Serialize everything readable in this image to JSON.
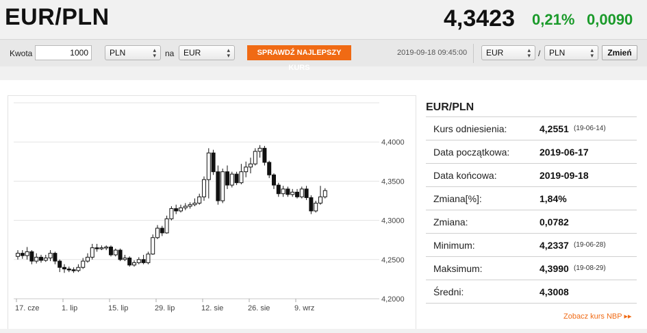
{
  "header": {
    "title": "EUR/PLN",
    "rate": "4,3423",
    "change_pct": "0,21%",
    "change_abs": "0,0090"
  },
  "toolbar": {
    "amount_label": "Kwota",
    "amount_value": "1000",
    "from_currency": "PLN",
    "on_label": "na",
    "to_currency": "EUR",
    "best_rate_button": "SPRAWDŹ NAJLEPSZY KURS",
    "timestamp": "2019-09-18 09:45:00",
    "pair_base": "EUR",
    "pair_sep": "/",
    "pair_quote": "PLN",
    "swap_button": "Zmień"
  },
  "stats": {
    "title": "EUR/PLN",
    "rows": [
      {
        "label": "Kurs odniesienia:",
        "value": "4,2551",
        "date": "(19-06-14)"
      },
      {
        "label": "Data początkowa:",
        "value": "2019-06-17",
        "date": ""
      },
      {
        "label": "Data końcowa:",
        "value": "2019-09-18",
        "date": ""
      },
      {
        "label": "Zmiana[%]:",
        "value": "1,84%",
        "date": ""
      },
      {
        "label": "Zmiana:",
        "value": "0,0782",
        "date": ""
      },
      {
        "label": "Minimum:",
        "value": "4,2337",
        "date": "(19-06-28)"
      },
      {
        "label": "Maksimum:",
        "value": "4,3990",
        "date": "(19-08-29)"
      },
      {
        "label": "Średni:",
        "value": "4,3008",
        "date": ""
      }
    ],
    "nbp_link": "Zobacz kurs NBP ▸▸"
  },
  "colors": {
    "accent": "#f06a14",
    "positive": "#1a9a2a"
  },
  "chart_data": {
    "type": "candlestick",
    "y_ticks": [
      "4,2000",
      "4,2500",
      "4,3000",
      "4,3500",
      "4,4000"
    ],
    "y_tick_values": [
      4.2,
      4.25,
      4.3,
      4.35,
      4.4
    ],
    "ylim": [
      4.2,
      4.45
    ],
    "x_ticks": [
      "17. cze",
      "1. lip",
      "15. lip",
      "29. lip",
      "12. sie",
      "26. sie",
      "9. wrz"
    ],
    "x_tick_index": [
      0,
      10,
      20,
      30,
      40,
      50,
      60
    ],
    "grid": true,
    "candles": [
      {
        "o": 4.254,
        "c": 4.258,
        "h": 4.262,
        "l": 4.25
      },
      {
        "o": 4.258,
        "c": 4.255,
        "h": 4.262,
        "l": 4.251
      },
      {
        "o": 4.255,
        "c": 4.26,
        "h": 4.266,
        "l": 4.25
      },
      {
        "o": 4.26,
        "c": 4.248,
        "h": 4.262,
        "l": 4.244
      },
      {
        "o": 4.248,
        "c": 4.253,
        "h": 4.258,
        "l": 4.245
      },
      {
        "o": 4.253,
        "c": 4.249,
        "h": 4.256,
        "l": 4.246
      },
      {
        "o": 4.249,
        "c": 4.252,
        "h": 4.256,
        "l": 4.247
      },
      {
        "o": 4.252,
        "c": 4.258,
        "h": 4.262,
        "l": 4.248
      },
      {
        "o": 4.258,
        "c": 4.248,
        "h": 4.26,
        "l": 4.244
      },
      {
        "o": 4.248,
        "c": 4.24,
        "h": 4.25,
        "l": 4.234
      },
      {
        "o": 4.24,
        "c": 4.238,
        "h": 4.244,
        "l": 4.233
      },
      {
        "o": 4.238,
        "c": 4.237,
        "h": 4.241,
        "l": 4.234
      },
      {
        "o": 4.237,
        "c": 4.236,
        "h": 4.24,
        "l": 4.233
      },
      {
        "o": 4.236,
        "c": 4.24,
        "h": 4.244,
        "l": 4.234
      },
      {
        "o": 4.24,
        "c": 4.248,
        "h": 4.252,
        "l": 4.238
      },
      {
        "o": 4.248,
        "c": 4.253,
        "h": 4.258,
        "l": 4.246
      },
      {
        "o": 4.253,
        "c": 4.265,
        "h": 4.27,
        "l": 4.25
      },
      {
        "o": 4.265,
        "c": 4.264,
        "h": 4.27,
        "l": 4.26
      },
      {
        "o": 4.264,
        "c": 4.265,
        "h": 4.268,
        "l": 4.262
      },
      {
        "o": 4.265,
        "c": 4.266,
        "h": 4.268,
        "l": 4.262
      },
      {
        "o": 4.266,
        "c": 4.256,
        "h": 4.268,
        "l": 4.254
      },
      {
        "o": 4.256,
        "c": 4.262,
        "h": 4.264,
        "l": 4.254
      },
      {
        "o": 4.262,
        "c": 4.25,
        "h": 4.264,
        "l": 4.248
      },
      {
        "o": 4.25,
        "c": 4.252,
        "h": 4.256,
        "l": 4.248
      },
      {
        "o": 4.252,
        "c": 4.243,
        "h": 4.254,
        "l": 4.241
      },
      {
        "o": 4.243,
        "c": 4.246,
        "h": 4.249,
        "l": 4.241
      },
      {
        "o": 4.246,
        "c": 4.25,
        "h": 4.253,
        "l": 4.244
      },
      {
        "o": 4.25,
        "c": 4.246,
        "h": 4.256,
        "l": 4.244
      },
      {
        "o": 4.246,
        "c": 4.257,
        "h": 4.26,
        "l": 4.244
      },
      {
        "o": 4.257,
        "c": 4.278,
        "h": 4.282,
        "l": 4.256
      },
      {
        "o": 4.278,
        "c": 4.29,
        "h": 4.294,
        "l": 4.276
      },
      {
        "o": 4.29,
        "c": 4.284,
        "h": 4.293,
        "l": 4.28
      },
      {
        "o": 4.284,
        "c": 4.302,
        "h": 4.306,
        "l": 4.283
      },
      {
        "o": 4.302,
        "c": 4.315,
        "h": 4.318,
        "l": 4.3
      },
      {
        "o": 4.315,
        "c": 4.312,
        "h": 4.32,
        "l": 4.308
      },
      {
        "o": 4.312,
        "c": 4.316,
        "h": 4.32,
        "l": 4.31
      },
      {
        "o": 4.316,
        "c": 4.318,
        "h": 4.322,
        "l": 4.313
      },
      {
        "o": 4.318,
        "c": 4.32,
        "h": 4.323,
        "l": 4.315
      },
      {
        "o": 4.32,
        "c": 4.322,
        "h": 4.328,
        "l": 4.318
      },
      {
        "o": 4.322,
        "c": 4.33,
        "h": 4.334,
        "l": 4.32
      },
      {
        "o": 4.33,
        "c": 4.352,
        "h": 4.356,
        "l": 4.325
      },
      {
        "o": 4.352,
        "c": 4.386,
        "h": 4.392,
        "l": 4.328
      },
      {
        "o": 4.386,
        "c": 4.362,
        "h": 4.39,
        "l": 4.358
      },
      {
        "o": 4.362,
        "c": 4.325,
        "h": 4.37,
        "l": 4.32
      },
      {
        "o": 4.325,
        "c": 4.362,
        "h": 4.366,
        "l": 4.322
      },
      {
        "o": 4.362,
        "c": 4.345,
        "h": 4.37,
        "l": 4.34
      },
      {
        "o": 4.345,
        "c": 4.359,
        "h": 4.362,
        "l": 4.342
      },
      {
        "o": 4.359,
        "c": 4.348,
        "h": 4.362,
        "l": 4.345
      },
      {
        "o": 4.348,
        "c": 4.362,
        "h": 4.372,
        "l": 4.346
      },
      {
        "o": 4.362,
        "c": 4.368,
        "h": 4.375,
        "l": 4.355
      },
      {
        "o": 4.368,
        "c": 4.372,
        "h": 4.38,
        "l": 4.36
      },
      {
        "o": 4.372,
        "c": 4.388,
        "h": 4.392,
        "l": 4.37
      },
      {
        "o": 4.388,
        "c": 4.392,
        "h": 4.396,
        "l": 4.38
      },
      {
        "o": 4.392,
        "c": 4.374,
        "h": 4.395,
        "l": 4.37
      },
      {
        "o": 4.374,
        "c": 4.358,
        "h": 4.376,
        "l": 4.354
      },
      {
        "o": 4.358,
        "c": 4.345,
        "h": 4.36,
        "l": 4.34
      },
      {
        "o": 4.345,
        "c": 4.334,
        "h": 4.348,
        "l": 4.33
      },
      {
        "o": 4.334,
        "c": 4.34,
        "h": 4.344,
        "l": 4.33
      },
      {
        "o": 4.34,
        "c": 4.333,
        "h": 4.343,
        "l": 4.33
      },
      {
        "o": 4.333,
        "c": 4.336,
        "h": 4.34,
        "l": 4.33
      },
      {
        "o": 4.336,
        "c": 4.33,
        "h": 4.34,
        "l": 4.328
      },
      {
        "o": 4.33,
        "c": 4.34,
        "h": 4.343,
        "l": 4.328
      },
      {
        "o": 4.34,
        "c": 4.329,
        "h": 4.344,
        "l": 4.326
      },
      {
        "o": 4.329,
        "c": 4.312,
        "h": 4.332,
        "l": 4.308
      },
      {
        "o": 4.312,
        "c": 4.322,
        "h": 4.325,
        "l": 4.31
      },
      {
        "o": 4.322,
        "c": 4.33,
        "h": 4.344,
        "l": 4.32
      },
      {
        "o": 4.33,
        "c": 4.338,
        "h": 4.341,
        "l": 4.328
      }
    ]
  }
}
